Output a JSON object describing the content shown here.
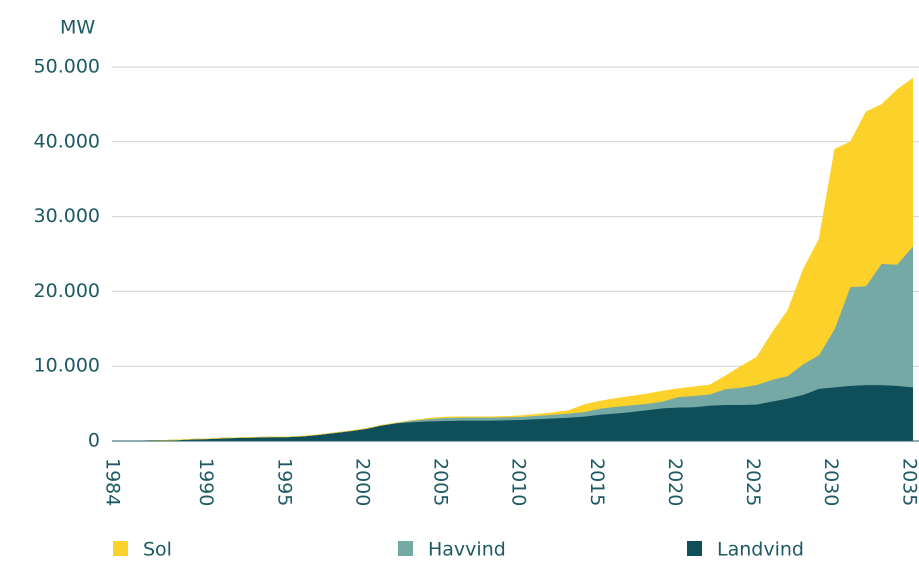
{
  "chart_data": {
    "type": "stacked_area",
    "y_label": "MW",
    "x": [
      1984,
      1985,
      1986,
      1987,
      1988,
      1989,
      1990,
      1991,
      1992,
      1993,
      1994,
      1995,
      1996,
      1997,
      1998,
      1999,
      2000,
      2001,
      2002,
      2003,
      2004,
      2005,
      2006,
      2007,
      2008,
      2009,
      2010,
      2011,
      2012,
      2013,
      2014,
      2015,
      2016,
      2017,
      2018,
      2019,
      2020,
      2021,
      2022,
      2023,
      2024,
      2025,
      2026,
      2027,
      2028,
      2029,
      2030,
      2031,
      2032,
      2033,
      2034,
      2035
    ],
    "series": [
      {
        "name": "Sol",
        "color": "#fcd12a",
        "values": [
          0,
          0,
          0,
          0,
          0,
          0,
          0,
          0,
          0,
          0,
          0,
          0,
          0,
          0,
          0,
          0,
          0,
          0,
          0,
          0,
          100,
          100,
          100,
          100,
          100,
          100,
          150,
          200,
          250,
          400,
          1000,
          1000,
          1100,
          1200,
          1300,
          1400,
          1100,
          1200,
          1250,
          1750,
          2850,
          3700,
          6300,
          8800,
          12700,
          15500,
          24000,
          19400,
          23300,
          21300,
          23400,
          22500
        ]
      },
      {
        "name": "Havvind",
        "color": "#74a9a6",
        "values": [
          0,
          0,
          0,
          0,
          0,
          0,
          0,
          0,
          0,
          0,
          0,
          0,
          0,
          0,
          0,
          0,
          0,
          0,
          50,
          200,
          300,
          400,
          400,
          400,
          400,
          400,
          400,
          450,
          500,
          550,
          600,
          800,
          900,
          900,
          850,
          900,
          1400,
          1500,
          1500,
          2100,
          2300,
          2600,
          2900,
          3000,
          4100,
          4500,
          7800,
          13200,
          13200,
          16200,
          16200,
          18800
        ]
      },
      {
        "name": "Landvind",
        "color": "#0e4f59",
        "values": [
          0,
          20,
          40,
          80,
          150,
          250,
          300,
          400,
          450,
          500,
          550,
          550,
          650,
          850,
          1100,
          1350,
          1650,
          2100,
          2400,
          2550,
          2650,
          2700,
          2750,
          2750,
          2750,
          2800,
          2850,
          2950,
          3050,
          3150,
          3300,
          3550,
          3700,
          3900,
          4150,
          4400,
          4500,
          4550,
          4750,
          4850,
          4850,
          4900,
          5300,
          5700,
          6200,
          7000,
          7200,
          7400,
          7500,
          7500,
          7400,
          7200
        ]
      }
    ],
    "xlim": [
      1984,
      2035.4
    ],
    "xticks": [
      1984,
      1990,
      1995,
      2000,
      2005,
      2010,
      2015,
      2020,
      2025,
      2030,
      2035
    ],
    "ylim": [
      0,
      50000
    ],
    "yticks": [
      0,
      {
        "value": 10000,
        "label": "10.000"
      },
      {
        "value": 20000,
        "label": "20.000"
      },
      {
        "value": 30000,
        "label": "30.000"
      },
      {
        "value": 40000,
        "label": "40.000"
      },
      {
        "value": 50000,
        "label": "50.000"
      }
    ],
    "grid": true,
    "legend": "bottom"
  }
}
